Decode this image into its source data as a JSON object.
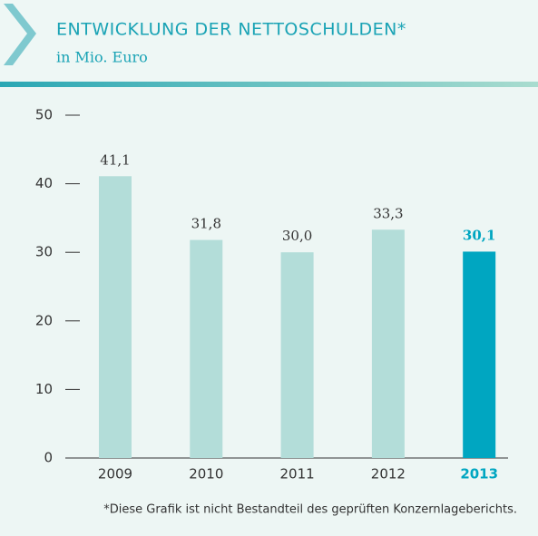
{
  "chart_data": {
    "type": "bar",
    "title": "ENTWICKLUNG DER NETTOSCHULDEN*",
    "subtitle": "in Mio. Euro",
    "categories": [
      "2009",
      "2010",
      "2011",
      "2012",
      "2013"
    ],
    "values": [
      41.1,
      31.8,
      30.0,
      33.3,
      30.1
    ],
    "value_labels": [
      "41,1",
      "31,8",
      "30,0",
      "33,3",
      "30,1"
    ],
    "colors": [
      "#b3ddd9",
      "#b3ddd9",
      "#b3ddd9",
      "#b3ddd9",
      "#00a6c1"
    ],
    "ylim": [
      0,
      50
    ],
    "yticks": [
      0,
      10,
      20,
      30,
      40,
      50
    ],
    "footnote": "*Diese Grafik ist nicht Bestandteil des geprüften Konzernlageberichts."
  }
}
